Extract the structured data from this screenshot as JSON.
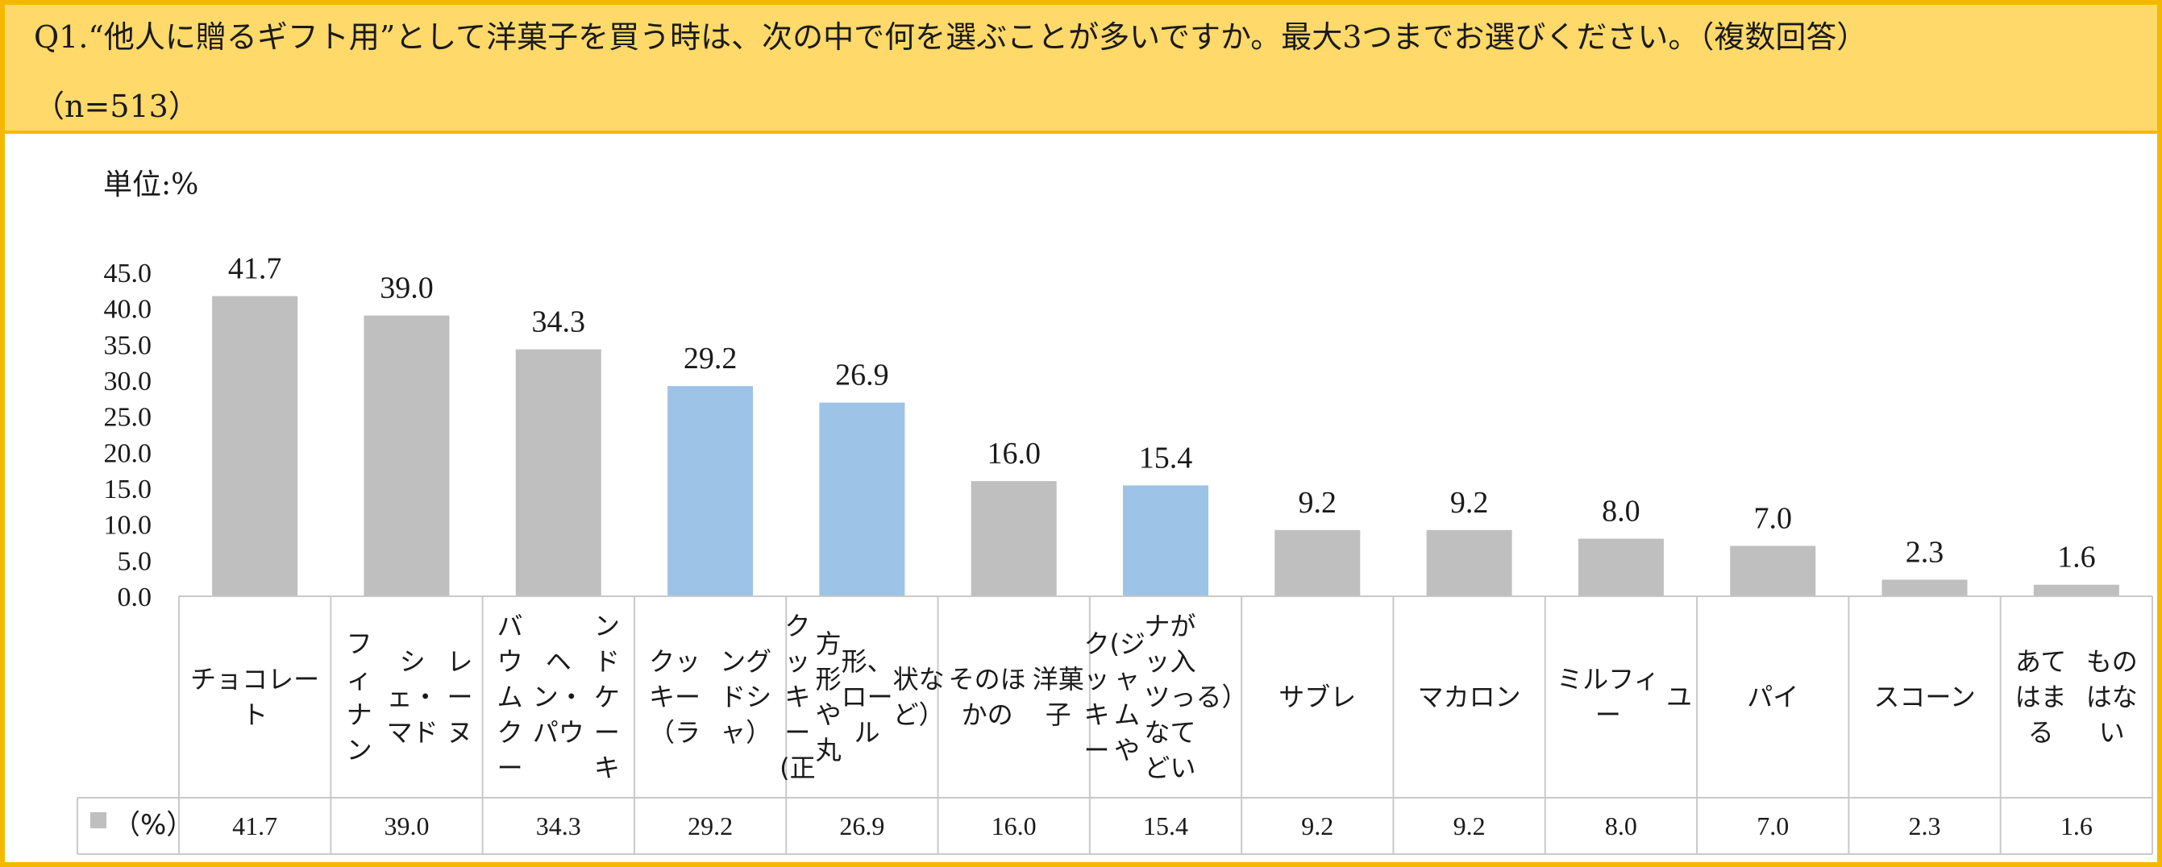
{
  "header": {
    "title": "Q1.“他人に贈るギフト用”として洋菓子を買う時は、次の中で何を選ぶことが多いですか。最大3つまでお選びください。（複数回答）",
    "subtitle": "（n=513）"
  },
  "unit_label": "単位:%",
  "legend_label": "（%）",
  "colors": {
    "gray": "#bfbfbf",
    "blue": "#9dc3e6",
    "frame": "#f5b800",
    "header_bg": "#ffd96a"
  },
  "chart_data": {
    "type": "bar",
    "title": "Q1.“他人に贈るギフト用”として洋菓子を買う時は、次の中で何を選ぶことが多いですか。最大3つまでお選びください。（複数回答）",
    "ylabel": "単位:%",
    "ylim": [
      0,
      45
    ],
    "yticks": [
      "0.0",
      "5.0",
      "10.0",
      "15.0",
      "20.0",
      "25.0",
      "30.0",
      "35.0",
      "40.0",
      "45.0"
    ],
    "categories": [
      "チョコレート",
      "フィナンシェ・マドレーヌ",
      "バウムクーヘン・パウンドケーキ",
      "クッキー（ラングドシャ）",
      "クッキー(正方形や丸形、ロール状など）",
      "そのほかの洋菓子",
      "クッキー(ジャムやナッツなどが入っている）",
      "サブレ",
      "マカロン",
      "ミルフィーユ",
      "パイ",
      "スコーン",
      "あてはまるものはない"
    ],
    "category_lines": [
      [
        "チョコレート"
      ],
      [
        "フィナン",
        "シェ・マド",
        "レーヌ"
      ],
      [
        "バウムクー",
        "ヘン・パウ",
        "ンドケーキ"
      ],
      [
        "クッキー（ラ",
        "ングドシャ）"
      ],
      [
        "クッキー(正",
        "方形や丸",
        "形、ロール",
        "状など）"
      ],
      [
        "そのほかの",
        "洋菓子"
      ],
      [
        "クッキー",
        "(ジャムや",
        "ナッツなど",
        "が入ってい",
        "る）"
      ],
      [
        "サブレ"
      ],
      [
        "マカロン"
      ],
      [
        "ミルフィー",
        "ユ"
      ],
      [
        "パイ"
      ],
      [
        "スコーン"
      ],
      [
        "あてはまる",
        "ものはない"
      ]
    ],
    "values": [
      41.7,
      39.0,
      34.3,
      29.2,
      26.9,
      16.0,
      15.4,
      9.2,
      9.2,
      8.0,
      7.0,
      2.3,
      1.6
    ],
    "value_labels": [
      "41.7",
      "39.0",
      "34.3",
      "29.2",
      "26.9",
      "16.0",
      "15.4",
      "9.2",
      "9.2",
      "8.0",
      "7.0",
      "2.3",
      "1.6"
    ],
    "highlight": [
      false,
      false,
      false,
      true,
      true,
      false,
      true,
      false,
      false,
      false,
      false,
      false,
      false
    ],
    "series": [
      {
        "name": "（%）",
        "values": [
          41.7,
          39.0,
          34.3,
          29.2,
          26.9,
          16.0,
          15.4,
          9.2,
          9.2,
          8.0,
          7.0,
          2.3,
          1.6
        ]
      }
    ],
    "grid": false,
    "legend": "bottom-left, in data table"
  }
}
